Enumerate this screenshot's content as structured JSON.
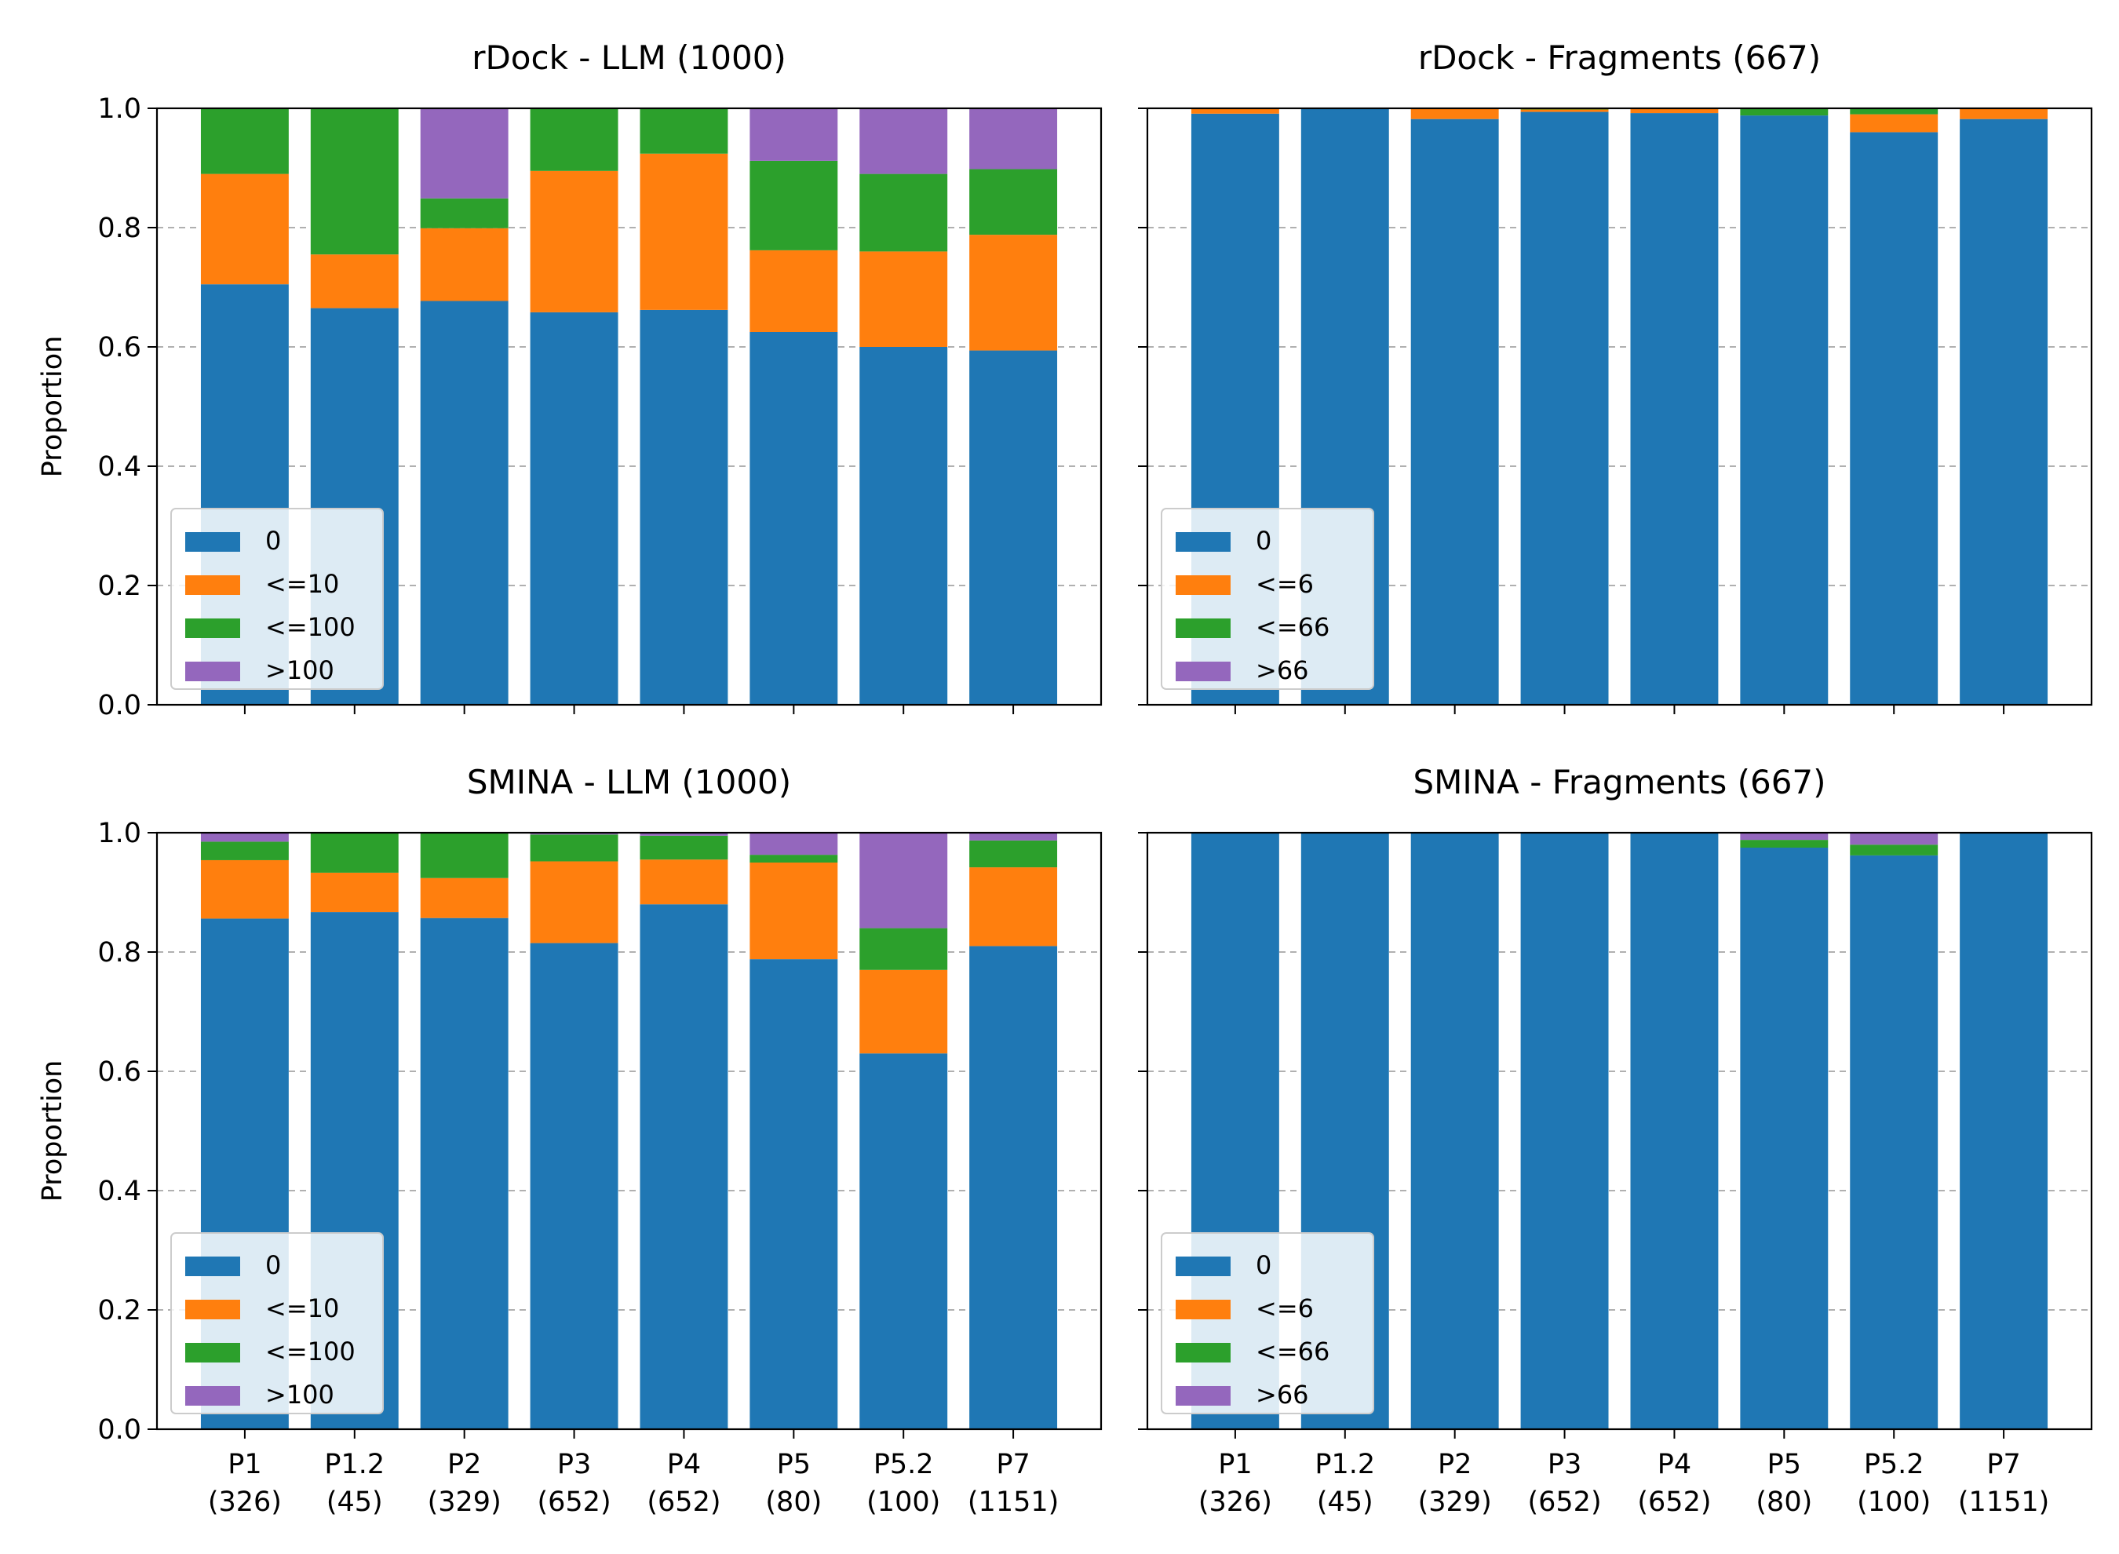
{
  "figure": {
    "ylabel": "Proportion",
    "categories": [
      "P1",
      "P1.2",
      "P2",
      "P3",
      "P4",
      "P5",
      "P5.2",
      "P7"
    ],
    "category_counts": [
      "(326)",
      "(45)",
      "(329)",
      "(652)",
      "(652)",
      "(80)",
      "(100)",
      "(1151)"
    ],
    "y_ticks": [
      "0.0",
      "0.2",
      "0.4",
      "0.6",
      "0.8",
      "1.0"
    ],
    "series_colors": [
      "#1f77b4",
      "#ff7f0e",
      "#2ca02c",
      "#9467bd"
    ]
  },
  "chart_data": [
    {
      "type": "bar",
      "stacked": true,
      "title": "rDock - LLM (1000)",
      "xlabel": "",
      "ylabel": "Proportion",
      "ylim": [
        0,
        1
      ],
      "grid": "y dashed",
      "legend_position": "lower-left",
      "categories": [
        "P1",
        "P1.2",
        "P2",
        "P3",
        "P4",
        "P5",
        "P5.2",
        "P7"
      ],
      "series": [
        {
          "name": "0",
          "values": [
            0.705,
            0.665,
            0.677,
            0.658,
            0.662,
            0.625,
            0.6,
            0.594
          ]
        },
        {
          "name": "<=10",
          "values": [
            0.185,
            0.09,
            0.122,
            0.237,
            0.262,
            0.137,
            0.16,
            0.194
          ]
        },
        {
          "name": "<=100",
          "values": [
            0.11,
            0.245,
            0.05,
            0.105,
            0.076,
            0.15,
            0.13,
            0.11
          ]
        },
        {
          "name": ">100",
          "values": [
            0.0,
            0.0,
            0.151,
            0.0,
            0.0,
            0.088,
            0.11,
            0.102
          ]
        }
      ]
    },
    {
      "type": "bar",
      "stacked": true,
      "title": "rDock - Fragments (667)",
      "xlabel": "",
      "ylabel": "",
      "ylim": [
        0,
        1
      ],
      "grid": "y dashed",
      "legend_position": "lower-left",
      "categories": [
        "P1",
        "P1.2",
        "P2",
        "P3",
        "P4",
        "P5",
        "P5.2",
        "P7"
      ],
      "series": [
        {
          "name": "0",
          "values": [
            0.991,
            1.0,
            0.982,
            0.994,
            0.992,
            0.988,
            0.96,
            0.982
          ]
        },
        {
          "name": "<=6",
          "values": [
            0.009,
            0.0,
            0.018,
            0.004,
            0.008,
            0.0,
            0.03,
            0.018
          ]
        },
        {
          "name": "<=66",
          "values": [
            0.0,
            0.0,
            0.0,
            0.002,
            0.0,
            0.012,
            0.01,
            0.0
          ]
        },
        {
          "name": ">66",
          "values": [
            0.0,
            0.0,
            0.0,
            0.0,
            0.0,
            0.0,
            0.0,
            0.0
          ]
        }
      ]
    },
    {
      "type": "bar",
      "stacked": true,
      "title": "SMINA - LLM (1000)",
      "xlabel": "",
      "ylabel": "Proportion",
      "ylim": [
        0,
        1
      ],
      "grid": "y dashed",
      "legend_position": "lower-left",
      "categories": [
        "P1",
        "P1.2",
        "P2",
        "P3",
        "P4",
        "P5",
        "P5.2",
        "P7"
      ],
      "series": [
        {
          "name": "0",
          "values": [
            0.856,
            0.867,
            0.857,
            0.815,
            0.88,
            0.788,
            0.63,
            0.81
          ]
        },
        {
          "name": "<=10",
          "values": [
            0.098,
            0.066,
            0.067,
            0.137,
            0.075,
            0.162,
            0.14,
            0.132
          ]
        },
        {
          "name": "<=100",
          "values": [
            0.031,
            0.067,
            0.076,
            0.045,
            0.04,
            0.013,
            0.07,
            0.045
          ]
        },
        {
          "name": ">100",
          "values": [
            0.015,
            0.0,
            0.0,
            0.003,
            0.005,
            0.037,
            0.16,
            0.013
          ]
        }
      ]
    },
    {
      "type": "bar",
      "stacked": true,
      "title": "SMINA - Fragments (667)",
      "xlabel": "",
      "ylabel": "",
      "ylim": [
        0,
        1
      ],
      "grid": "y dashed",
      "legend_position": "lower-left",
      "categories": [
        "P1",
        "P1.2",
        "P2",
        "P3",
        "P4",
        "P5",
        "P5.2",
        "P7"
      ],
      "series": [
        {
          "name": "0",
          "values": [
            1.0,
            1.0,
            1.0,
            1.0,
            1.0,
            0.975,
            0.962,
            1.0
          ]
        },
        {
          "name": "<=6",
          "values": [
            0.0,
            0.0,
            0.0,
            0.0,
            0.0,
            0.0,
            0.0,
            0.0
          ]
        },
        {
          "name": "<=66",
          "values": [
            0.0,
            0.0,
            0.0,
            0.0,
            0.0,
            0.013,
            0.018,
            0.0
          ]
        },
        {
          "name": ">66",
          "values": [
            0.0,
            0.0,
            0.0,
            0.0,
            0.0,
            0.012,
            0.02,
            0.0
          ]
        }
      ]
    }
  ]
}
